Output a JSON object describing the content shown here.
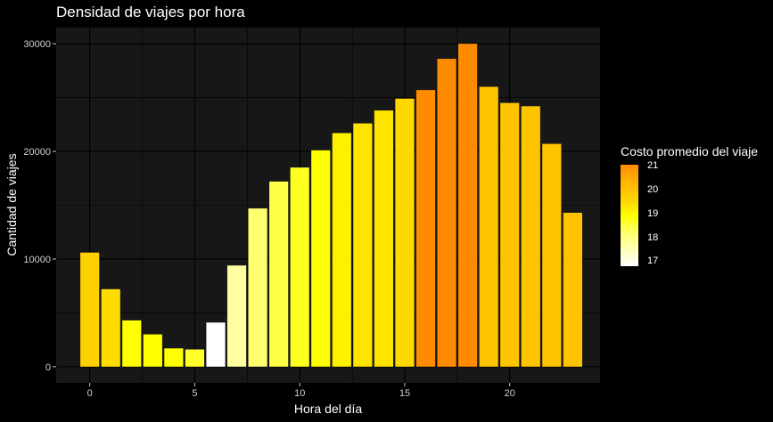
{
  "chart_data": {
    "type": "bar",
    "title": "Densidad de viajes por hora",
    "xlabel": "Hora del día",
    "ylabel": "Cantidad de viajes",
    "xlim": [
      -1.6,
      24.3
    ],
    "ylim": [
      -1500,
      31500
    ],
    "x_ticks": [
      "0",
      "5",
      "10",
      "15",
      "20"
    ],
    "y_ticks": [
      "0",
      "10000",
      "20000",
      "30000"
    ],
    "grid": true,
    "background": "#171717",
    "legend": {
      "title": "Costo promedio del viaje",
      "placement": "right",
      "ticks": [
        "21",
        "20",
        "19",
        "18",
        "17"
      ]
    },
    "x": [
      0,
      1,
      2,
      3,
      4,
      5,
      6,
      7,
      8,
      9,
      10,
      11,
      12,
      13,
      14,
      15,
      16,
      17,
      18,
      19,
      20,
      21,
      22,
      23
    ],
    "values": [
      10600,
      7200,
      4300,
      3000,
      1700,
      1600,
      4100,
      9400,
      14700,
      17200,
      18500,
      20100,
      21700,
      22600,
      23800,
      24900,
      25700,
      28600,
      30000,
      26000,
      24500,
      24200,
      20700,
      14300
    ],
    "colors": [
      "#ffd000",
      "#ffdc00",
      "#ffff00",
      "#ffff00",
      "#ffff00",
      "#ffff2a",
      "#ffffff",
      "#ffffa0",
      "#ffff70",
      "#ffff48",
      "#ffff20",
      "#ffff00",
      "#fff000",
      "#ffe400",
      "#ffe400",
      "#ffd800",
      "#ff8c00",
      "#ff8c00",
      "#ff8c00",
      "#ffc400",
      "#ffc400",
      "#ffc400",
      "#ffc400",
      "#ffc400"
    ]
  }
}
